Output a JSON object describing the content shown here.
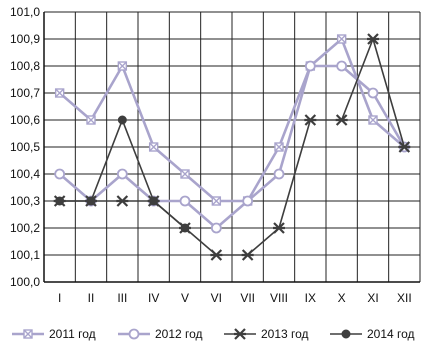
{
  "chart_data": {
    "type": "line",
    "categories": [
      "I",
      "II",
      "III",
      "IV",
      "V",
      "VI",
      "VII",
      "VIII",
      "IX",
      "X",
      "XI",
      "XII"
    ],
    "y_ticks": [
      "100,0",
      "100,1",
      "100,2",
      "100,3",
      "100,4",
      "100,5",
      "100,6",
      "100,7",
      "100,8",
      "100,9",
      "101,0"
    ],
    "ylim": [
      100.0,
      101.0
    ],
    "grid": true,
    "legend_position": "bottom",
    "series": [
      {
        "name": "2011 год",
        "color": "#a9a4cc",
        "marker": "x-square",
        "values": [
          100.7,
          100.6,
          100.8,
          100.5,
          100.4,
          100.3,
          100.3,
          100.5,
          100.8,
          100.9,
          100.6,
          100.5
        ]
      },
      {
        "name": "2012 год",
        "color": "#a9a4cc",
        "marker": "circle",
        "values": [
          100.4,
          100.3,
          100.4,
          100.3,
          100.3,
          100.2,
          100.3,
          100.4,
          100.8,
          100.8,
          100.7,
          100.5
        ]
      },
      {
        "name": "2013 год",
        "color": "#3e3e3e",
        "marker": "star",
        "values": [
          100.3,
          100.3,
          100.3,
          100.3,
          100.2,
          100.1,
          100.1,
          100.2,
          100.6,
          100.6,
          100.9,
          100.5
        ]
      },
      {
        "name": "2014 год",
        "color": "#3e3e3e",
        "marker": "dot",
        "values": [
          100.3,
          100.3,
          100.6,
          100.3,
          100.2,
          null,
          null,
          null,
          null,
          null,
          null,
          null
        ]
      }
    ]
  }
}
